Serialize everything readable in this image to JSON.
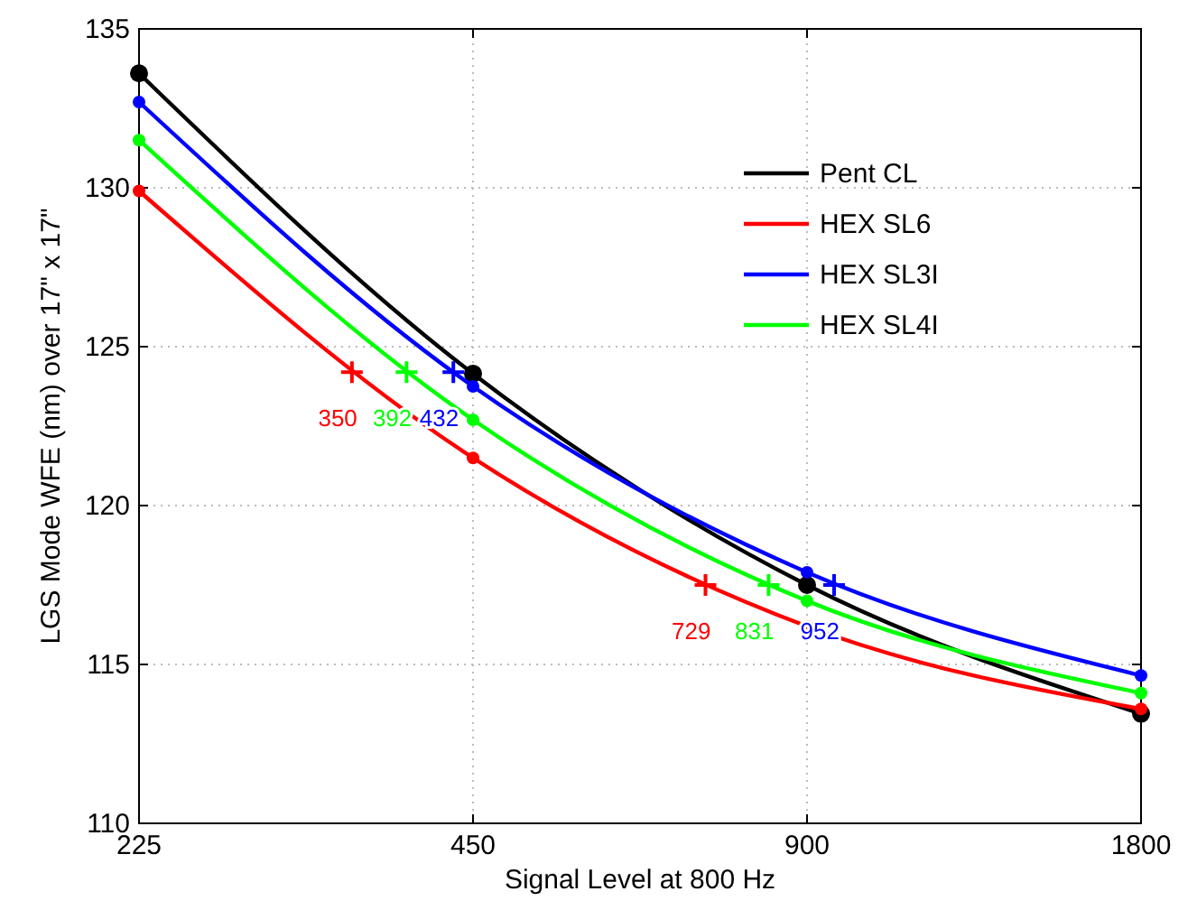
{
  "chart_data": {
    "type": "line",
    "xlabel": "Signal Level at 800 Hz",
    "ylabel": "LGS Mode WFE (nm) over 17\" x 17\"",
    "log": "x",
    "x": [
      225,
      450,
      900,
      1800
    ],
    "xlim": [
      225,
      1800
    ],
    "xticks": [
      225,
      450,
      900,
      1800
    ],
    "ylim": [
      110,
      135
    ],
    "yticks": [
      110,
      115,
      120,
      125,
      130,
      135
    ],
    "grid": true,
    "legend": "top right",
    "marker": "circle",
    "line_style": "solid",
    "series": [
      {
        "name": "Pent CL",
        "color": "#000000",
        "values": [
          133.6,
          124.15,
          117.5,
          113.45
        ]
      },
      {
        "name": "HEX SL6",
        "color": "#ff0000",
        "values": [
          129.9,
          121.5,
          116.2,
          113.6
        ]
      },
      {
        "name": "HEX SL3I",
        "color": "#0000ff",
        "values": [
          132.7,
          123.75,
          117.9,
          114.65
        ]
      },
      {
        "name": "HEX SL4I",
        "color": "#00ff00",
        "values": [
          131.5,
          122.7,
          117.0,
          114.1
        ]
      },
      {
        "type": "scatter",
        "marker": "cross",
        "color": "#ff0000",
        "x": [
          350,
          729
        ],
        "values": [
          124.2,
          117.5
        ]
      },
      {
        "type": "scatter",
        "marker": "cross",
        "color": "#00ff00",
        "x": [
          392,
          831
        ],
        "values": [
          124.2,
          117.5
        ]
      },
      {
        "type": "scatter",
        "marker": "cross",
        "color": "#0000ff",
        "x": [
          432,
          952
        ],
        "values": [
          124.2,
          117.5
        ]
      }
    ],
    "annotations": [
      {
        "text": "350",
        "x": 350,
        "y": 124.2
      },
      {
        "text": "392",
        "x": 392,
        "y": 124.2
      },
      {
        "text": "432",
        "x": 432,
        "y": 124.2
      },
      {
        "text": "729",
        "x": 729,
        "y": 117.5
      },
      {
        "text": "831",
        "x": 831,
        "y": 117.5
      },
      {
        "text": "952",
        "x": 952,
        "y": 117.5
      }
    ]
  }
}
